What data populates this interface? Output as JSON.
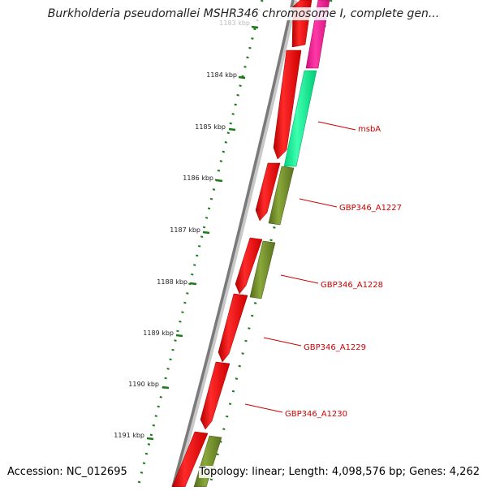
{
  "title": "Burkholderia pseudomallei MSHR346 chromosome I, complete gen...",
  "footer": {
    "accession": "Accession: NC_012695",
    "topology": "Topology: linear; Length: 4,098,576 bp; Genes: 4,262"
  },
  "ruler": {
    "labels": [
      "1183 kbp",
      "1184 kbp",
      "1185 kbp",
      "1186 kbp",
      "1187 kbp",
      "1188 kbp",
      "1189 kbp",
      "1190 kbp",
      "1191 kbp"
    ]
  },
  "genes": [
    {
      "label": "msbA",
      "color": "#00ff99"
    },
    {
      "label": "GBP346_A1227",
      "color": "#6b8e23"
    },
    {
      "label": "GBP346_A1228",
      "color": "#6b8e23"
    },
    {
      "label": "GBP346_A1229",
      "color": "#ff0000"
    },
    {
      "label": "GBP346_A1230",
      "color": "#ff0000"
    }
  ],
  "colors": {
    "cds": "#ff0000",
    "trna": "#ff1493",
    "gene_label": "#cc0000",
    "ruler": "#1a7a1a",
    "backbone": "#808080"
  }
}
